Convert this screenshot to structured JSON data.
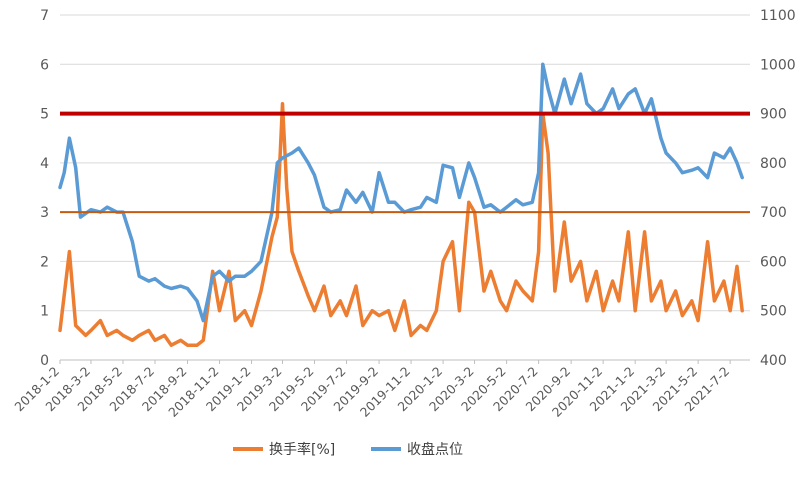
{
  "chart_data": {
    "type": "line",
    "title": "",
    "xlabel": "",
    "ylabel_left": "",
    "ylabel_right": "",
    "y_left": {
      "min": 0,
      "max": 7,
      "ticks": [
        0,
        1,
        2,
        3,
        4,
        5,
        6,
        7
      ]
    },
    "y_right": {
      "min": 400,
      "max": 1100,
      "ticks": [
        400,
        500,
        600,
        700,
        800,
        900,
        1000,
        1100
      ]
    },
    "grid": true,
    "legend_position": "bottom",
    "x_tick_labels": [
      "2018-1-2",
      "2018-3-2",
      "2018-5-2",
      "2018-7-2",
      "2018-9-2",
      "2018-11-2",
      "2019-1-2",
      "2019-3-2",
      "2019-5-2",
      "2019-7-2",
      "2019-9-2",
      "2019-11-2",
      "2020-1-2",
      "2020-3-2",
      "2020-5-2",
      "2020-7-2",
      "2020-9-2",
      "2020-11-2",
      "2021-1-2",
      "2021-3-2",
      "2021-5-2",
      "2021-7-2"
    ],
    "reference_lines": [
      {
        "axis": "right",
        "value": 900,
        "color": "#c00000",
        "width": 4
      },
      {
        "axis": "right",
        "value": 700,
        "color": "#c55a11",
        "width": 2
      }
    ],
    "series": [
      {
        "name": "换手率[%]",
        "axis": "left",
        "color": "#ed7d31",
        "x": [
          "2018-1-2",
          "2018-1-20",
          "2018-2-1",
          "2018-2-20",
          "2018-3-2",
          "2018-3-20",
          "2018-4-2",
          "2018-4-20",
          "2018-5-2",
          "2018-5-20",
          "2018-6-2",
          "2018-6-20",
          "2018-7-2",
          "2018-7-20",
          "2018-8-2",
          "2018-8-20",
          "2018-9-2",
          "2018-9-20",
          "2018-10-2",
          "2018-10-20",
          "2018-11-2",
          "2018-11-20",
          "2018-12-2",
          "2018-12-20",
          "2019-1-2",
          "2019-1-20",
          "2019-2-10",
          "2019-2-20",
          "2019-3-2",
          "2019-3-10",
          "2019-3-20",
          "2019-4-2",
          "2019-4-20",
          "2019-5-2",
          "2019-5-20",
          "2019-6-2",
          "2019-6-20",
          "2019-7-2",
          "2019-7-20",
          "2019-8-2",
          "2019-8-20",
          "2019-9-2",
          "2019-9-20",
          "2019-10-2",
          "2019-10-20",
          "2019-11-2",
          "2019-11-20",
          "2019-12-2",
          "2019-12-20",
          "2020-1-2",
          "2020-1-20",
          "2020-2-2",
          "2020-2-20",
          "2020-3-2",
          "2020-3-20",
          "2020-4-2",
          "2020-4-20",
          "2020-5-2",
          "2020-5-20",
          "2020-6-2",
          "2020-6-20",
          "2020-7-2",
          "2020-7-10",
          "2020-7-20",
          "2020-8-2",
          "2020-8-20",
          "2020-9-2",
          "2020-9-20",
          "2020-10-2",
          "2020-10-20",
          "2020-11-2",
          "2020-11-20",
          "2020-12-2",
          "2020-12-20",
          "2021-1-2",
          "2021-1-20",
          "2021-2-2",
          "2021-2-20",
          "2021-3-2",
          "2021-3-20",
          "2021-4-2",
          "2021-4-20",
          "2021-5-2",
          "2021-5-20",
          "2021-6-2",
          "2021-6-20",
          "2021-7-2",
          "2021-7-15",
          "2021-7-25"
        ],
        "values": [
          0.6,
          2.2,
          0.7,
          0.5,
          0.6,
          0.8,
          0.5,
          0.6,
          0.5,
          0.4,
          0.5,
          0.6,
          0.4,
          0.5,
          0.3,
          0.4,
          0.3,
          0.3,
          0.4,
          1.8,
          1.0,
          1.8,
          0.8,
          1.0,
          0.7,
          1.4,
          2.5,
          2.9,
          5.2,
          3.5,
          2.2,
          1.8,
          1.3,
          1.0,
          1.5,
          0.9,
          1.2,
          0.9,
          1.5,
          0.7,
          1.0,
          0.9,
          1.0,
          0.6,
          1.2,
          0.5,
          0.7,
          0.6,
          1.0,
          2.0,
          2.4,
          1.0,
          3.2,
          3.0,
          1.4,
          1.8,
          1.2,
          1.0,
          1.6,
          1.4,
          1.2,
          2.2,
          5.0,
          4.2,
          1.4,
          2.8,
          1.6,
          2.0,
          1.2,
          1.8,
          1.0,
          1.6,
          1.2,
          2.6,
          1.0,
          2.6,
          1.2,
          1.6,
          1.0,
          1.4,
          0.9,
          1.2,
          0.8,
          2.4,
          1.2,
          1.6,
          1.0,
          1.9,
          1.0
        ]
      },
      {
        "name": "收盘点位",
        "axis": "right",
        "color": "#5b9bd5",
        "x": [
          "2018-1-2",
          "2018-1-10",
          "2018-1-20",
          "2018-2-1",
          "2018-2-10",
          "2018-3-2",
          "2018-3-20",
          "2018-4-2",
          "2018-4-20",
          "2018-5-2",
          "2018-5-20",
          "2018-6-2",
          "2018-6-20",
          "2018-7-2",
          "2018-7-20",
          "2018-8-2",
          "2018-8-20",
          "2018-9-2",
          "2018-9-20",
          "2018-10-2",
          "2018-10-20",
          "2018-11-2",
          "2018-11-20",
          "2018-12-2",
          "2018-12-20",
          "2019-1-2",
          "2019-1-20",
          "2019-2-10",
          "2019-2-20",
          "2019-3-2",
          "2019-3-20",
          "2019-4-2",
          "2019-4-20",
          "2019-5-2",
          "2019-5-20",
          "2019-6-2",
          "2019-6-20",
          "2019-7-2",
          "2019-7-20",
          "2019-8-2",
          "2019-8-20",
          "2019-9-2",
          "2019-9-20",
          "2019-10-2",
          "2019-10-20",
          "2019-11-2",
          "2019-11-20",
          "2019-12-2",
          "2019-12-20",
          "2020-1-2",
          "2020-1-20",
          "2020-2-2",
          "2020-2-20",
          "2020-3-2",
          "2020-3-20",
          "2020-4-2",
          "2020-4-20",
          "2020-5-2",
          "2020-5-20",
          "2020-6-2",
          "2020-6-20",
          "2020-7-2",
          "2020-7-10",
          "2020-7-20",
          "2020-8-2",
          "2020-8-20",
          "2020-9-2",
          "2020-9-20",
          "2020-10-2",
          "2020-10-20",
          "2020-11-2",
          "2020-11-20",
          "2020-12-2",
          "2020-12-20",
          "2021-1-2",
          "2021-1-20",
          "2021-2-2",
          "2021-2-20",
          "2021-3-2",
          "2021-3-20",
          "2021-4-2",
          "2021-4-20",
          "2021-5-2",
          "2021-5-20",
          "2021-6-2",
          "2021-6-20",
          "2021-7-2",
          "2021-7-15",
          "2021-7-25"
        ],
        "values": [
          750,
          780,
          850,
          790,
          690,
          705,
          700,
          710,
          700,
          700,
          640,
          570,
          560,
          565,
          550,
          545,
          550,
          545,
          520,
          480,
          570,
          580,
          560,
          570,
          570,
          580,
          600,
          700,
          800,
          810,
          820,
          830,
          800,
          775,
          710,
          700,
          705,
          745,
          720,
          740,
          700,
          780,
          720,
          720,
          700,
          705,
          710,
          730,
          720,
          795,
          790,
          730,
          800,
          770,
          710,
          715,
          700,
          710,
          725,
          715,
          720,
          780,
          1000,
          950,
          900,
          970,
          920,
          980,
          920,
          900,
          910,
          950,
          910,
          940,
          950,
          900,
          930,
          850,
          820,
          800,
          780,
          785,
          790,
          770,
          820,
          810,
          830,
          800,
          770
        ]
      }
    ]
  },
  "legend": {
    "items": [
      {
        "label": "换手率[%]",
        "color": "#ed7d31"
      },
      {
        "label": "收盘点位",
        "color": "#5b9bd5"
      }
    ]
  }
}
